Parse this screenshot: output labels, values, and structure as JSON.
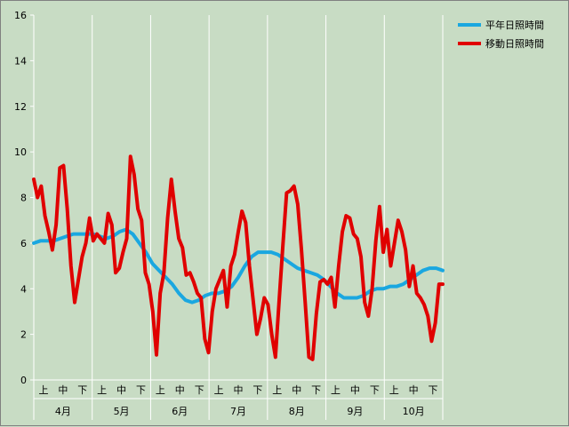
{
  "chart_data": {
    "type": "line",
    "ylim": [
      0,
      16
    ],
    "yticks": [
      0,
      2,
      4,
      6,
      8,
      10,
      12,
      14,
      16
    ],
    "months": [
      "4月",
      "5月",
      "6月",
      "7月",
      "8月",
      "9月",
      "10月"
    ],
    "thirds": [
      "上",
      "中",
      "下"
    ],
    "grid": "vertical-only",
    "legend_position": "top-right",
    "colors": {
      "normal": "#1aa7e0",
      "moving": "#e00000",
      "background": "#c8dcc4"
    },
    "series": [
      {
        "name": "平年日照時間",
        "key": "normal",
        "values": [
          6.0,
          6.1,
          6.1,
          6.1,
          6.2,
          6.3,
          6.4,
          6.4,
          6.4,
          6.4,
          6.3,
          6.2,
          6.3,
          6.5,
          6.6,
          6.4,
          6.0,
          5.6,
          5.1,
          4.8,
          4.5,
          4.2,
          3.8,
          3.5,
          3.4,
          3.5,
          3.7,
          3.8,
          3.8,
          3.9,
          4.1,
          4.5,
          5.0,
          5.4,
          5.6,
          5.6,
          5.6,
          5.5,
          5.3,
          5.1,
          4.9,
          4.8,
          4.7,
          4.6,
          4.4,
          4.1,
          3.8,
          3.6,
          3.6,
          3.6,
          3.7,
          3.9,
          4.0,
          4.0,
          4.1,
          4.1,
          4.2,
          4.4,
          4.6,
          4.8,
          4.9,
          4.9,
          4.8
        ]
      },
      {
        "name": "移動日照時間",
        "key": "moving",
        "values": [
          8.8,
          8.0,
          8.5,
          7.2,
          6.5,
          5.7,
          6.8,
          9.3,
          9.4,
          7.5,
          5.0,
          3.4,
          4.4,
          5.4,
          6.0,
          7.1,
          6.1,
          6.4,
          6.2,
          6.0,
          7.3,
          6.8,
          4.7,
          4.9,
          5.6,
          6.2,
          9.8,
          9.0,
          7.5,
          7.0,
          4.7,
          4.2,
          3.0,
          1.1,
          3.8,
          4.7,
          7.1,
          8.8,
          7.4,
          6.2,
          5.8,
          4.6,
          4.7,
          4.3,
          3.8,
          3.6,
          1.8,
          1.2,
          3.0,
          4.0,
          4.4,
          4.8,
          3.2,
          5.0,
          5.5,
          6.5,
          7.4,
          6.9,
          5.0,
          3.5,
          2.0,
          2.7,
          3.6,
          3.3,
          2.0,
          1.0,
          3.5,
          5.9,
          8.2,
          8.3,
          8.5,
          7.7,
          5.7,
          3.4,
          1.0,
          0.9,
          2.9,
          4.3,
          4.4,
          4.2,
          4.5,
          3.2,
          5.0,
          6.5,
          7.2,
          7.1,
          6.4,
          6.2,
          5.4,
          3.4,
          2.8,
          4.0,
          6.1,
          7.6,
          5.6,
          6.6,
          5.0,
          6.0,
          7.0,
          6.5,
          5.7,
          4.1,
          5.0,
          3.8,
          3.6,
          3.3,
          2.8,
          1.7,
          2.5,
          4.2,
          4.2
        ]
      }
    ]
  }
}
